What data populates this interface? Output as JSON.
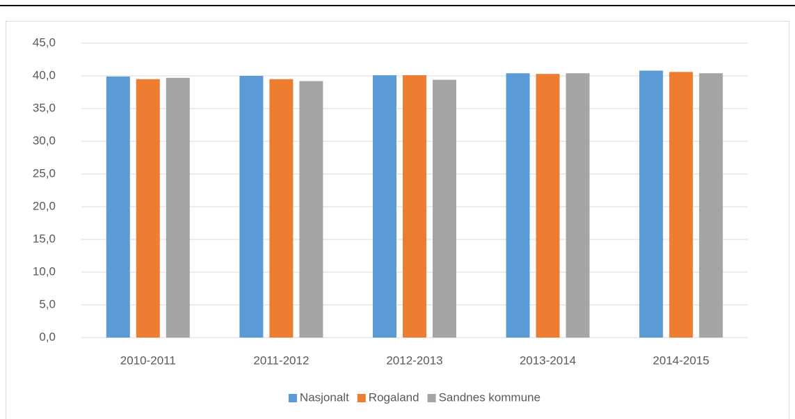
{
  "chart_data": {
    "type": "bar",
    "categories": [
      "2010-2011",
      "2011-2012",
      "2012-2013",
      "2013-2014",
      "2014-2015"
    ],
    "series": [
      {
        "name": "Nasjonalt",
        "color": "#5b9bd5",
        "values": [
          39.9,
          40.0,
          40.1,
          40.4,
          40.8
        ]
      },
      {
        "name": "Rogaland",
        "color": "#ed7d31",
        "values": [
          39.5,
          39.5,
          40.1,
          40.3,
          40.6
        ]
      },
      {
        "name": "Sandnes kommune",
        "color": "#a5a5a5",
        "values": [
          39.7,
          39.2,
          39.4,
          40.4,
          40.4
        ]
      }
    ],
    "ylim": [
      0,
      45
    ],
    "yticks": [
      {
        "value": 0,
        "label": "0,0"
      },
      {
        "value": 5,
        "label": "5,0"
      },
      {
        "value": 10,
        "label": "10,0"
      },
      {
        "value": 15,
        "label": "15,0"
      },
      {
        "value": 20,
        "label": "20,0"
      },
      {
        "value": 25,
        "label": "25,0"
      },
      {
        "value": 30,
        "label": "30,0"
      },
      {
        "value": 35,
        "label": "35,0"
      },
      {
        "value": 40,
        "label": "40,0"
      },
      {
        "value": 45,
        "label": "45,0"
      }
    ],
    "grid": true,
    "legend": "bottom"
  }
}
